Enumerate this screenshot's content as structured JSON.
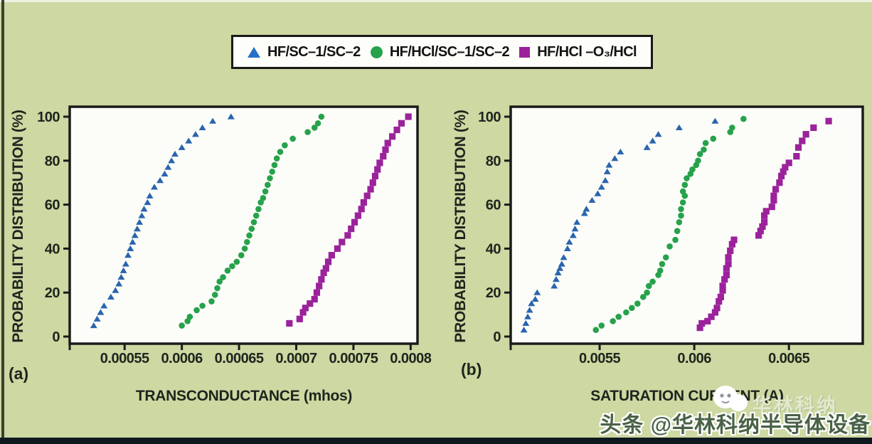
{
  "page": {
    "background_color": "#cdd8a2",
    "bottom_bar_color": "#10181f"
  },
  "legend": {
    "items": [
      {
        "label": "HF/SC–1/SC–2",
        "marker": "triangle",
        "color": "#2570c8"
      },
      {
        "label": "HF/HCl/SC–1/SC–2",
        "marker": "circle",
        "color": "#27a24b"
      },
      {
        "label": "HF/HCl –O₃/HCl",
        "marker": "square",
        "color": "#9b229b"
      }
    ]
  },
  "panels": [
    {
      "label": "(a)"
    },
    {
      "label": "(b)"
    }
  ],
  "watermark": {
    "faint_text": "华林科纳",
    "main_text": "头条 @华林科纳半导体设备"
  },
  "chart_data": [
    {
      "type": "scatter",
      "title": "",
      "xlabel": "TRANSCONDUCTANCE (mhos)",
      "ylabel": "PROBABILITY DISTRIBUTION (%)",
      "xlim": [
        0.000502,
        0.000806
      ],
      "ylim": [
        0,
        105
      ],
      "grid": false,
      "legend_position": "top-outside",
      "xticks": [
        {
          "value": 0.00055,
          "label": "0.00055"
        },
        {
          "value": 0.0006,
          "label": "0.0006"
        },
        {
          "value": 0.00065,
          "label": "0.00065"
        },
        {
          "value": 0.0007,
          "label": "0.0007"
        },
        {
          "value": 0.00075,
          "label": "0.00075"
        },
        {
          "value": 0.0008,
          "label": "0.0008"
        }
      ],
      "yticks": [
        0,
        20,
        40,
        60,
        80,
        100
      ],
      "series": [
        {
          "name": "HF/SC–1/SC–2",
          "marker": "triangle",
          "color": "#2a64ad",
          "points": [
            [
              0.000523,
              5
            ],
            [
              0.000526,
              8
            ],
            [
              0.000529,
              11
            ],
            [
              0.000532,
              14
            ],
            [
              0.000538,
              18
            ],
            [
              0.000542,
              21
            ],
            [
              0.000545,
              24
            ],
            [
              0.000547,
              27
            ],
            [
              0.000549,
              30
            ],
            [
              0.000551,
              33
            ],
            [
              0.000553,
              37
            ],
            [
              0.000555,
              40
            ],
            [
              0.000557,
              43
            ],
            [
              0.000559,
              46
            ],
            [
              0.000561,
              49
            ],
            [
              0.000563,
              52
            ],
            [
              0.000565,
              55
            ],
            [
              0.000567,
              58
            ],
            [
              0.00057,
              61
            ],
            [
              0.000572,
              64
            ],
            [
              0.000576,
              68
            ],
            [
              0.000581,
              71
            ],
            [
              0.000585,
              74
            ],
            [
              0.000588,
              77
            ],
            [
              0.000591,
              80
            ],
            [
              0.000594,
              83
            ],
            [
              0.0006,
              86
            ],
            [
              0.000606,
              89
            ],
            [
              0.000612,
              92
            ],
            [
              0.000618,
              95
            ],
            [
              0.000627,
              98
            ],
            [
              0.000643,
              100
            ]
          ]
        },
        {
          "name": "HF/HCl/SC–1/SC–2",
          "marker": "circle",
          "color": "#27a24b",
          "points": [
            [
              0.0006,
              5
            ],
            [
              0.000605,
              7
            ],
            [
              0.000607,
              9
            ],
            [
              0.000613,
              12
            ],
            [
              0.000618,
              14
            ],
            [
              0.000626,
              16
            ],
            [
              0.000629,
              19
            ],
            [
              0.000631,
              22
            ],
            [
              0.000633,
              25
            ],
            [
              0.000636,
              27
            ],
            [
              0.00064,
              30
            ],
            [
              0.000644,
              32
            ],
            [
              0.000648,
              34
            ],
            [
              0.000652,
              37
            ],
            [
              0.000655,
              40
            ],
            [
              0.000657,
              43
            ],
            [
              0.000659,
              46
            ],
            [
              0.000661,
              49
            ],
            [
              0.000663,
              52
            ],
            [
              0.000665,
              55
            ],
            [
              0.000667,
              58
            ],
            [
              0.000669,
              61
            ],
            [
              0.000671,
              63
            ],
            [
              0.000673,
              66
            ],
            [
              0.000675,
              69
            ],
            [
              0.000677,
              72
            ],
            [
              0.000679,
              75
            ],
            [
              0.000681,
              78
            ],
            [
              0.000683,
              81
            ],
            [
              0.000686,
              84
            ],
            [
              0.00069,
              87
            ],
            [
              0.000697,
              90
            ],
            [
              0.00071,
              93
            ],
            [
              0.000716,
              95
            ],
            [
              0.000719,
              97
            ],
            [
              0.000722,
              100
            ]
          ]
        },
        {
          "name": "HF/HCl –O₃/HCl",
          "marker": "square",
          "color": "#9b229b",
          "points": [
            [
              0.000694,
              6
            ],
            [
              0.000703,
              8
            ],
            [
              0.000706,
              11
            ],
            [
              0.000708,
              13
            ],
            [
              0.000712,
              15
            ],
            [
              0.000716,
              17
            ],
            [
              0.000718,
              20
            ],
            [
              0.00072,
              23
            ],
            [
              0.000722,
              26
            ],
            [
              0.000724,
              29
            ],
            [
              0.000726,
              31
            ],
            [
              0.000728,
              34
            ],
            [
              0.000731,
              37
            ],
            [
              0.000736,
              40
            ],
            [
              0.00074,
              43
            ],
            [
              0.000745,
              46
            ],
            [
              0.000748,
              49
            ],
            [
              0.000751,
              52
            ],
            [
              0.000754,
              55
            ],
            [
              0.000757,
              58
            ],
            [
              0.000759,
              61
            ],
            [
              0.000762,
              64
            ],
            [
              0.000765,
              67
            ],
            [
              0.000767,
              70
            ],
            [
              0.000769,
              73
            ],
            [
              0.000771,
              76
            ],
            [
              0.000773,
              79
            ],
            [
              0.000776,
              82
            ],
            [
              0.000778,
              85
            ],
            [
              0.00078,
              88
            ],
            [
              0.000784,
              91
            ],
            [
              0.000788,
              94
            ],
            [
              0.000792,
              97
            ],
            [
              0.000798,
              100
            ]
          ]
        }
      ]
    },
    {
      "type": "scatter",
      "title": "",
      "xlabel": "SATURATION CURRENT (A)",
      "ylabel": "PROBABILITY DISTRIBUTION (%)",
      "xlim": [
        0.00503,
        0.00689
      ],
      "ylim": [
        0,
        105
      ],
      "grid": false,
      "legend_position": "top-outside",
      "xticks": [
        {
          "value": 0.0055,
          "label": "0.0055"
        },
        {
          "value": 0.006,
          "label": "0.006"
        },
        {
          "value": 0.0065,
          "label": "0.0065"
        }
      ],
      "yticks": [
        0,
        20,
        40,
        60,
        80,
        100
      ],
      "series": [
        {
          "name": "HF/SC–1/SC–2",
          "marker": "triangle",
          "color": "#2a64ad",
          "points": [
            [
              0.0051,
              3
            ],
            [
              0.00511,
              6
            ],
            [
              0.00512,
              9
            ],
            [
              0.00513,
              12
            ],
            [
              0.00514,
              15
            ],
            [
              0.00516,
              17
            ],
            [
              0.00517,
              20
            ],
            [
              0.00526,
              23
            ],
            [
              0.00527,
              26
            ],
            [
              0.00528,
              29
            ],
            [
              0.00529,
              31
            ],
            [
              0.0053,
              33
            ],
            [
              0.00531,
              36
            ],
            [
              0.00533,
              40
            ],
            [
              0.00534,
              43
            ],
            [
              0.00536,
              46
            ],
            [
              0.00537,
              49
            ],
            [
              0.00538,
              52
            ],
            [
              0.00542,
              56
            ],
            [
              0.00543,
              58
            ],
            [
              0.00546,
              62
            ],
            [
              0.00549,
              65
            ],
            [
              0.00551,
              68
            ],
            [
              0.00553,
              71
            ],
            [
              0.00554,
              75
            ],
            [
              0.00555,
              78
            ],
            [
              0.00558,
              81
            ],
            [
              0.00561,
              84
            ],
            [
              0.00575,
              86
            ],
            [
              0.00578,
              89
            ],
            [
              0.00581,
              92
            ],
            [
              0.00592,
              95
            ],
            [
              0.00611,
              98
            ]
          ]
        },
        {
          "name": "HF/HCl/SC–1/SC–2",
          "marker": "circle",
          "color": "#27a24b",
          "points": [
            [
              0.00548,
              3
            ],
            [
              0.00551,
              5
            ],
            [
              0.00557,
              7
            ],
            [
              0.0056,
              9
            ],
            [
              0.00564,
              11
            ],
            [
              0.00567,
              13
            ],
            [
              0.0057,
              15
            ],
            [
              0.00573,
              18
            ],
            [
              0.00575,
              20
            ],
            [
              0.00576,
              23
            ],
            [
              0.00578,
              25
            ],
            [
              0.00581,
              28
            ],
            [
              0.00582,
              30
            ],
            [
              0.00583,
              33
            ],
            [
              0.00585,
              36
            ],
            [
              0.00587,
              41
            ],
            [
              0.0059,
              44
            ],
            [
              0.00591,
              48
            ],
            [
              0.00592,
              52
            ],
            [
              0.00593,
              55
            ],
            [
              0.00593,
              58
            ],
            [
              0.00594,
              61
            ],
            [
              0.00595,
              64
            ],
            [
              0.00594,
              66
            ],
            [
              0.00595,
              69
            ],
            [
              0.00596,
              72
            ],
            [
              0.00598,
              74
            ],
            [
              0.00599,
              76
            ],
            [
              0.00601,
              78
            ],
            [
              0.00602,
              80
            ],
            [
              0.00603,
              83
            ],
            [
              0.00605,
              85
            ],
            [
              0.00606,
              88
            ],
            [
              0.0061,
              90
            ],
            [
              0.00619,
              93
            ],
            [
              0.0062,
              95
            ],
            [
              0.00626,
              99
            ]
          ]
        },
        {
          "name": "HF/HCl –O₃/HCl",
          "marker": "square",
          "color": "#9b229b",
          "points": [
            [
              0.00603,
              4
            ],
            [
              0.00604,
              6
            ],
            [
              0.00607,
              7
            ],
            [
              0.00609,
              9
            ],
            [
              0.00611,
              11
            ],
            [
              0.00612,
              13
            ],
            [
              0.00613,
              16
            ],
            [
              0.00614,
              18
            ],
            [
              0.00615,
              21
            ],
            [
              0.00615,
              23
            ],
            [
              0.00616,
              26
            ],
            [
              0.00617,
              28
            ],
            [
              0.00617,
              31
            ],
            [
              0.00618,
              33
            ],
            [
              0.00618,
              36
            ],
            [
              0.00619,
              39
            ],
            [
              0.0062,
              42
            ],
            [
              0.00621,
              44
            ],
            [
              0.00634,
              46
            ],
            [
              0.00635,
              48
            ],
            [
              0.00636,
              50
            ],
            [
              0.00637,
              52
            ],
            [
              0.00637,
              55
            ],
            [
              0.00638,
              57
            ],
            [
              0.00641,
              59
            ],
            [
              0.00642,
              62
            ],
            [
              0.00642,
              64
            ],
            [
              0.00643,
              67
            ],
            [
              0.00645,
              70
            ],
            [
              0.00646,
              73
            ],
            [
              0.00647,
              75
            ],
            [
              0.00648,
              77
            ],
            [
              0.0065,
              79
            ],
            [
              0.00654,
              82
            ],
            [
              0.00655,
              86
            ],
            [
              0.00657,
              89
            ],
            [
              0.00659,
              92
            ],
            [
              0.00663,
              95
            ],
            [
              0.00671,
              98
            ]
          ]
        }
      ]
    }
  ]
}
